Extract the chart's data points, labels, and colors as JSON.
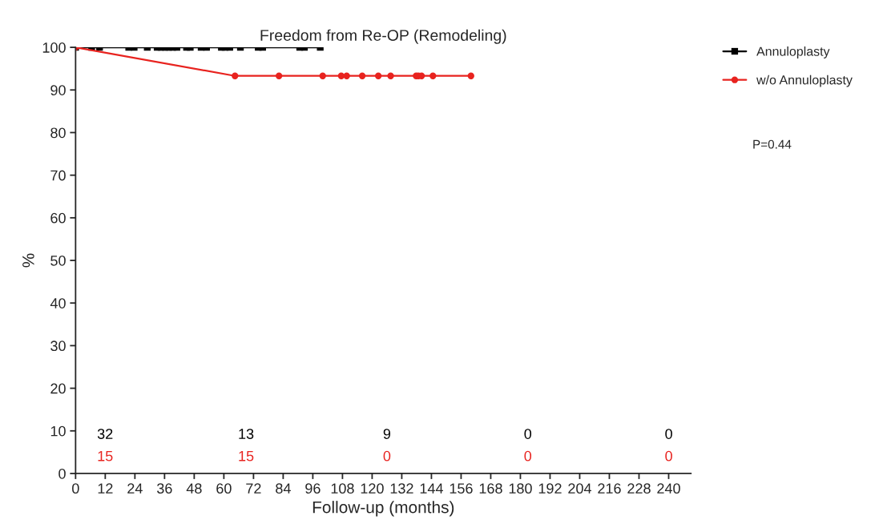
{
  "chart_data": {
    "type": "line",
    "title": "Freedom from Re-OP (Remodeling)",
    "xlabel": "Follow-up (months)",
    "ylabel": "%",
    "series": [
      {
        "name": "Annuloplasty",
        "color": "#000000",
        "marker": "square",
        "x": [
          0,
          6.5,
          9.7,
          21.5,
          23.7,
          29,
          33,
          34.6,
          36.2,
          37.7,
          39.3,
          41,
          44.9,
          46.4,
          50.8,
          53,
          59,
          60.5,
          62.4,
          66.7,
          73.9,
          75.7,
          90.7,
          92.6,
          99
        ],
        "values": [
          100,
          100,
          100,
          100,
          100,
          100,
          100,
          100,
          100,
          100,
          100,
          100,
          100,
          100,
          100,
          100,
          100,
          100,
          100,
          100,
          100,
          100,
          100,
          100,
          100
        ]
      },
      {
        "name": "w/o Annuloplasty",
        "color": "#e8231f",
        "marker": "circle",
        "x": [
          0,
          64.5,
          82.3,
          100,
          107.5,
          109.7,
          116,
          122.5,
          127.5,
          137.8,
          138.7,
          140,
          144.6,
          160
        ],
        "values": [
          100,
          93.3,
          93.3,
          93.3,
          93.3,
          93.3,
          93.3,
          93.3,
          93.3,
          93.3,
          93.3,
          93.3,
          93.3,
          93.3
        ]
      }
    ],
    "xlim": [
      0,
      249
    ],
    "xticks": [
      0,
      12,
      24,
      36,
      48,
      60,
      72,
      84,
      96,
      108,
      120,
      132,
      144,
      156,
      168,
      180,
      192,
      204,
      216,
      228,
      240
    ],
    "ylim": [
      0,
      100
    ],
    "yticks": [
      0,
      10,
      20,
      30,
      40,
      50,
      60,
      70,
      80,
      90,
      100
    ],
    "grid": false,
    "legend": "top right",
    "line_style": "solid",
    "annotations": [
      "P=0.44",
      "32",
      "13",
      "9",
      "0",
      "0",
      "15",
      "15",
      "0",
      "0",
      "0"
    ]
  }
}
